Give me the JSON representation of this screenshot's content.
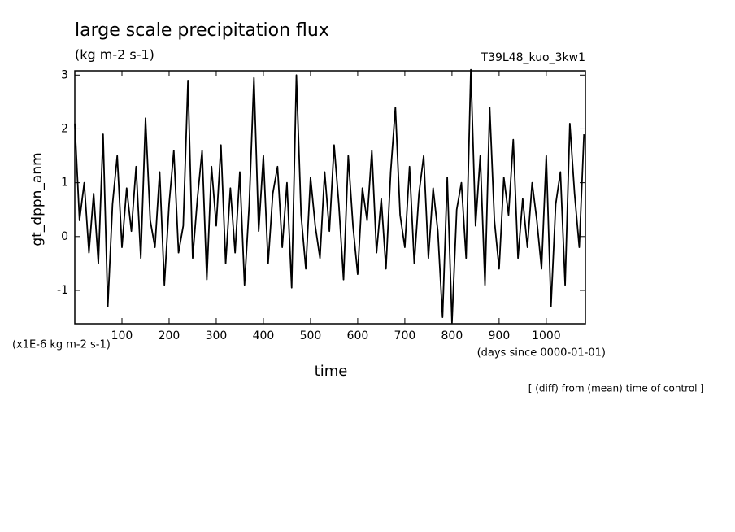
{
  "chart_data": {
    "type": "line",
    "title": "large scale precipitation flux",
    "subtitle": "(kg m-2 s-1)",
    "experiment": "T39L48_kuo_3kw1",
    "y_label": "gt_dppn_anm",
    "y_unit": "(x1E-6 kg m-2 s-1)",
    "x_label": "time",
    "x_unit": "(days since 0000-01-01)",
    "note": "[ (diff) from (mean) time of control ]",
    "color": "#000000",
    "xlim": [
      0,
      1083
    ],
    "ylim": [
      -1.62,
      3.08
    ],
    "xticks": [
      100,
      200,
      300,
      400,
      500,
      600,
      700,
      800,
      900,
      1000
    ],
    "yticks": [
      -1,
      0,
      1,
      2,
      3
    ],
    "x": [
      0,
      10,
      20,
      30,
      40,
      50,
      60,
      70,
      80,
      90,
      100,
      110,
      120,
      130,
      140,
      150,
      160,
      170,
      180,
      190,
      200,
      210,
      220,
      230,
      240,
      250,
      260,
      270,
      280,
      290,
      300,
      310,
      320,
      330,
      340,
      350,
      360,
      370,
      380,
      390,
      400,
      410,
      420,
      430,
      440,
      450,
      460,
      470,
      480,
      490,
      500,
      510,
      520,
      530,
      540,
      550,
      560,
      570,
      580,
      590,
      600,
      610,
      620,
      630,
      640,
      650,
      660,
      670,
      680,
      690,
      700,
      710,
      720,
      730,
      740,
      750,
      760,
      770,
      780,
      790,
      800,
      810,
      820,
      830,
      840,
      850,
      860,
      870,
      880,
      890,
      900,
      910,
      920,
      930,
      940,
      950,
      960,
      970,
      980,
      990,
      1000,
      1010,
      1020,
      1030,
      1040,
      1050,
      1060,
      1070,
      1080
    ],
    "values": [
      2.1,
      0.3,
      1.0,
      -0.3,
      0.8,
      -0.5,
      1.9,
      -1.3,
      0.6,
      1.5,
      -0.2,
      0.9,
      0.1,
      1.3,
      -0.4,
      2.2,
      0.3,
      -0.2,
      1.2,
      -0.9,
      0.6,
      1.6,
      -0.3,
      0.2,
      2.9,
      -0.4,
      0.7,
      1.6,
      -0.8,
      1.3,
      0.2,
      1.7,
      -0.5,
      0.9,
      -0.3,
      1.2,
      -0.9,
      0.6,
      2.95,
      0.1,
      1.5,
      -0.5,
      0.8,
      1.3,
      -0.2,
      1.0,
      -0.95,
      3.0,
      0.4,
      -0.6,
      1.1,
      0.2,
      -0.4,
      1.2,
      0.1,
      1.7,
      0.6,
      -0.8,
      1.5,
      0.2,
      -0.7,
      0.9,
      0.3,
      1.6,
      -0.3,
      0.7,
      -0.6,
      1.2,
      2.4,
      0.4,
      -0.2,
      1.3,
      -0.5,
      0.8,
      1.5,
      -0.4,
      0.9,
      0.1,
      -1.5,
      1.1,
      -1.6,
      0.5,
      1.0,
      -0.4,
      3.1,
      0.2,
      1.5,
      -0.9,
      2.4,
      0.3,
      -0.6,
      1.1,
      0.4,
      1.8,
      -0.4,
      0.7,
      -0.2,
      1.0,
      0.3,
      -0.6,
      1.5,
      -1.3,
      0.6,
      1.2,
      -0.9,
      2.1,
      0.8,
      -0.2,
      1.9
    ]
  }
}
